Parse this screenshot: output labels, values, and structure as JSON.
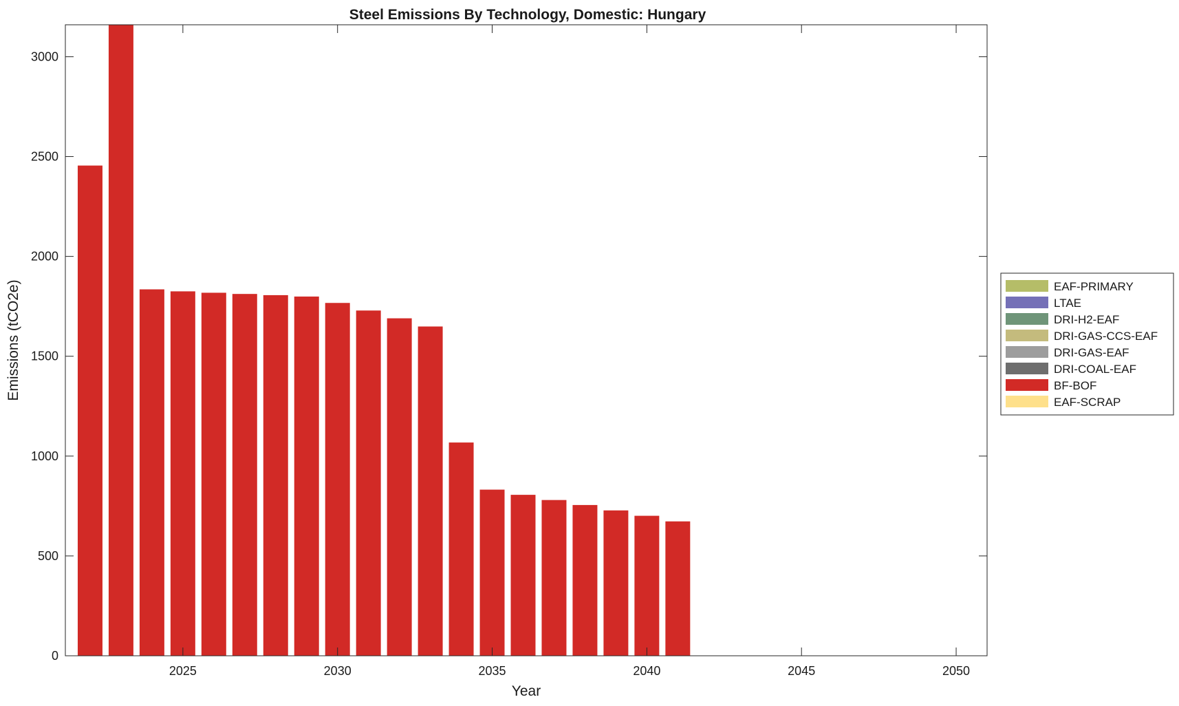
{
  "chart_data": {
    "type": "bar",
    "stacked": true,
    "title": "Steel Emissions By Technology, Domestic: Hungary",
    "xlabel": "Year",
    "ylabel": "Emissions (tCO2e)",
    "xlim": [
      2021.2,
      2051.0
    ],
    "ylim": [
      0,
      3160
    ],
    "xticks": [
      2025,
      2030,
      2035,
      2040,
      2045,
      2050
    ],
    "yticks": [
      0,
      500,
      1000,
      1500,
      2000,
      2500,
      3000
    ],
    "grid": false,
    "legend_position": "outside-right",
    "x": [
      2022,
      2023,
      2024,
      2025,
      2026,
      2027,
      2028,
      2029,
      2030,
      2031,
      2032,
      2033,
      2034,
      2035,
      2036,
      2037,
      2038,
      2039,
      2040,
      2041,
      2042,
      2043,
      2044,
      2045,
      2046,
      2047,
      2048,
      2049,
      2050
    ],
    "series": [
      {
        "name": "EAF-PRIMARY",
        "color": "#b5bd68",
        "values": [
          0,
          0,
          0,
          0,
          0,
          0,
          0,
          0,
          0,
          0,
          0,
          0,
          0,
          0,
          0,
          0,
          0,
          0,
          0,
          0,
          0,
          0,
          0,
          0,
          0,
          0,
          0,
          0,
          0
        ]
      },
      {
        "name": "LTAE",
        "color": "#7570b7",
        "values": [
          0,
          0,
          0,
          0,
          0,
          0,
          0,
          0,
          0,
          0,
          0,
          0,
          0,
          0,
          0,
          0,
          0,
          0,
          0,
          0,
          0,
          0,
          0,
          0,
          0,
          0,
          0,
          0,
          0
        ]
      },
      {
        "name": "DRI-H2-EAF",
        "color": "#6f9579",
        "values": [
          0,
          0,
          0,
          0,
          0,
          0,
          0,
          0,
          0,
          0,
          0,
          0,
          0,
          0,
          0,
          0,
          0,
          0,
          0,
          0,
          0,
          0,
          0,
          0,
          0,
          0,
          0,
          0,
          0
        ]
      },
      {
        "name": "DRI-GAS-CCS-EAF",
        "color": "#c4bb7d",
        "values": [
          0,
          0,
          0,
          0,
          0,
          0,
          0,
          0,
          0,
          0,
          0,
          0,
          0,
          0,
          0,
          0,
          0,
          0,
          0,
          0,
          0,
          0,
          0,
          0,
          0,
          0,
          0,
          0,
          0
        ]
      },
      {
        "name": "DRI-GAS-EAF",
        "color": "#9d9d9d",
        "values": [
          0,
          0,
          0,
          0,
          0,
          0,
          0,
          0,
          0,
          0,
          0,
          0,
          0,
          0,
          0,
          0,
          0,
          0,
          0,
          0,
          0,
          0,
          0,
          0,
          0,
          0,
          0,
          0,
          0
        ]
      },
      {
        "name": "DRI-COAL-EAF",
        "color": "#6e6e6e",
        "values": [
          0,
          0,
          0,
          0,
          0,
          0,
          0,
          0,
          0,
          0,
          0,
          0,
          0,
          0,
          0,
          0,
          0,
          0,
          0,
          0,
          0,
          0,
          0,
          0,
          0,
          0,
          0,
          0,
          0
        ]
      },
      {
        "name": "BF-BOF",
        "color": "#d22a26",
        "values": [
          2455,
          3160,
          1835,
          1825,
          1818,
          1812,
          1806,
          1799,
          1767,
          1729,
          1690,
          1649,
          1068,
          832,
          806,
          780,
          755,
          728,
          701,
          673,
          0,
          0,
          0,
          0,
          0,
          0,
          0,
          0,
          0
        ]
      },
      {
        "name": "EAF-SCRAP",
        "color": "#fee08b",
        "values": [
          0,
          0,
          0,
          0,
          0,
          0,
          0,
          0,
          0,
          0,
          0,
          0,
          0,
          0,
          0,
          0,
          0,
          0,
          0,
          0,
          0,
          0,
          0,
          0,
          0,
          0,
          0,
          0,
          0
        ]
      }
    ]
  }
}
